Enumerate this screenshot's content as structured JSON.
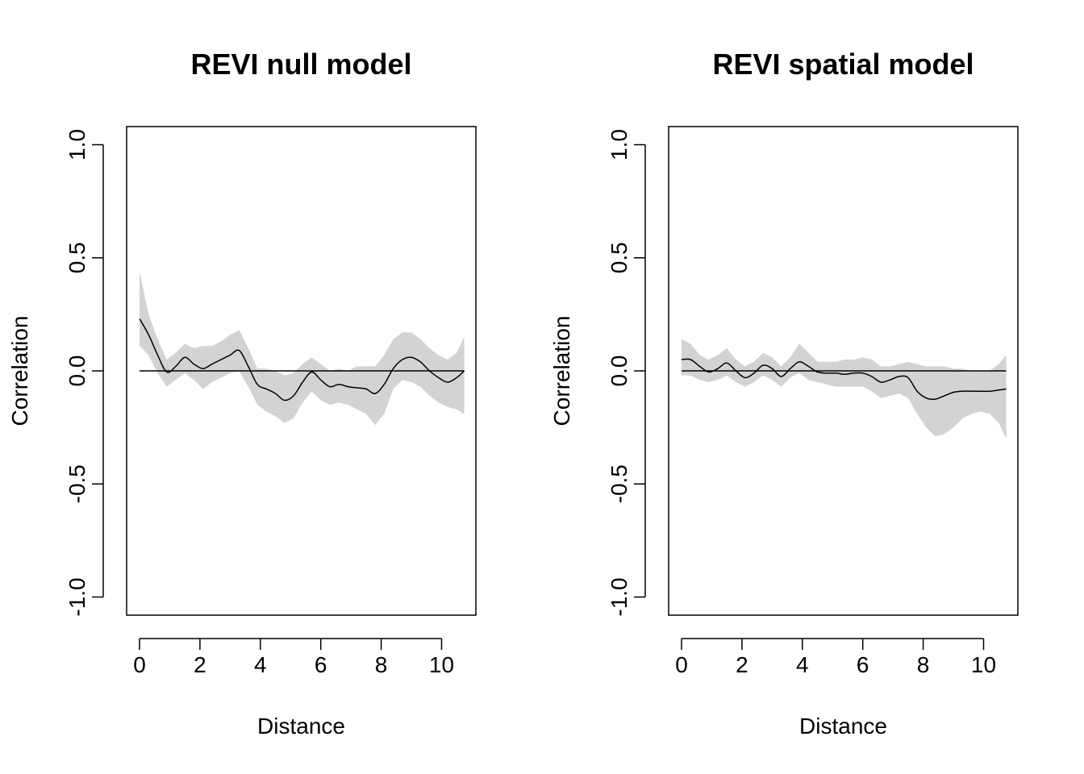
{
  "chart_data": [
    {
      "type": "line",
      "title": "REVI null model",
      "xlabel": "Distance",
      "ylabel": "Correlation",
      "xlim": [
        0,
        10.75
      ],
      "ylim": [
        -1.0,
        1.0
      ],
      "x_ticks": [
        0,
        2,
        4,
        6,
        8,
        10
      ],
      "x_tick_labels": [
        "0",
        "2",
        "4",
        "6",
        "8",
        "10"
      ],
      "y_ticks": [
        -1.0,
        -0.5,
        0.0,
        0.5,
        1.0
      ],
      "y_tick_labels": [
        "-1.0",
        "-0.5",
        "0.0",
        "0.5",
        "1.0"
      ],
      "grid": false,
      "reference_line_y": 0,
      "band_color": "#d3d3d3",
      "line_color": "#000000",
      "series": [
        {
          "x": [
            0,
            0.3,
            0.6,
            0.9,
            1.2,
            1.5,
            1.8,
            2.1,
            2.4,
            2.7,
            3.0,
            3.3,
            3.6,
            3.9,
            4.2,
            4.5,
            4.8,
            5.1,
            5.4,
            5.7,
            6.0,
            6.3,
            6.6,
            6.9,
            7.2,
            7.5,
            7.8,
            8.1,
            8.4,
            8.7,
            9.0,
            9.3,
            9.6,
            9.9,
            10.2,
            10.5,
            10.75
          ],
          "y": [
            0.23,
            0.16,
            0.07,
            -0.005,
            0.02,
            0.06,
            0.03,
            0.01,
            0.03,
            0.05,
            0.07,
            0.09,
            0.02,
            -0.06,
            -0.08,
            -0.1,
            -0.13,
            -0.11,
            -0.05,
            -0.005,
            -0.04,
            -0.07,
            -0.06,
            -0.07,
            -0.075,
            -0.08,
            -0.1,
            -0.06,
            0.01,
            0.05,
            0.06,
            0.04,
            0.0,
            -0.03,
            -0.05,
            -0.03,
            0.0
          ],
          "lower": [
            0.11,
            0.07,
            -0.01,
            -0.07,
            -0.04,
            -0.01,
            -0.04,
            -0.08,
            -0.05,
            -0.03,
            -0.01,
            0.0,
            -0.07,
            -0.15,
            -0.18,
            -0.2,
            -0.23,
            -0.21,
            -0.14,
            -0.09,
            -0.13,
            -0.15,
            -0.14,
            -0.15,
            -0.17,
            -0.19,
            -0.24,
            -0.19,
            -0.08,
            -0.04,
            -0.05,
            -0.07,
            -0.11,
            -0.14,
            -0.16,
            -0.17,
            -0.19
          ],
          "upper": [
            0.44,
            0.25,
            0.14,
            0.05,
            0.08,
            0.12,
            0.1,
            0.11,
            0.11,
            0.13,
            0.16,
            0.18,
            0.1,
            0.01,
            0.01,
            0.0,
            -0.02,
            -0.01,
            0.03,
            0.06,
            0.03,
            0.0,
            0.01,
            0.0,
            0.02,
            0.02,
            0.02,
            0.07,
            0.14,
            0.17,
            0.17,
            0.14,
            0.1,
            0.07,
            0.05,
            0.08,
            0.15
          ]
        }
      ]
    },
    {
      "type": "line",
      "title": "REVI spatial model",
      "xlabel": "Distance",
      "ylabel": "Correlation",
      "xlim": [
        0,
        10.75
      ],
      "ylim": [
        -1.0,
        1.0
      ],
      "x_ticks": [
        0,
        2,
        4,
        6,
        8,
        10
      ],
      "x_tick_labels": [
        "0",
        "2",
        "4",
        "6",
        "8",
        "10"
      ],
      "y_ticks": [
        -1.0,
        -0.5,
        0.0,
        0.5,
        1.0
      ],
      "y_tick_labels": [
        "-1.0",
        "-0.5",
        "0.0",
        "0.5",
        "1.0"
      ],
      "grid": false,
      "reference_line_y": 0,
      "band_color": "#d3d3d3",
      "line_color": "#000000",
      "series": [
        {
          "x": [
            0,
            0.3,
            0.6,
            0.9,
            1.2,
            1.5,
            1.8,
            2.1,
            2.4,
            2.7,
            3.0,
            3.3,
            3.6,
            3.9,
            4.2,
            4.5,
            4.8,
            5.1,
            5.4,
            5.7,
            6.0,
            6.3,
            6.6,
            6.9,
            7.2,
            7.5,
            7.8,
            8.1,
            8.4,
            8.7,
            9.0,
            9.3,
            9.6,
            9.9,
            10.2,
            10.5,
            10.75
          ],
          "y": [
            0.05,
            0.05,
            0.02,
            -0.005,
            0.01,
            0.035,
            0.0,
            -0.03,
            -0.01,
            0.025,
            0.01,
            -0.025,
            0.01,
            0.04,
            0.02,
            -0.005,
            -0.01,
            -0.01,
            -0.015,
            -0.01,
            -0.01,
            -0.025,
            -0.05,
            -0.04,
            -0.025,
            -0.03,
            -0.09,
            -0.12,
            -0.125,
            -0.11,
            -0.095,
            -0.09,
            -0.09,
            -0.09,
            -0.09,
            -0.085,
            -0.08
          ],
          "lower": [
            -0.02,
            -0.02,
            -0.04,
            -0.05,
            -0.04,
            -0.02,
            -0.05,
            -0.07,
            -0.05,
            -0.02,
            -0.04,
            -0.07,
            -0.03,
            -0.01,
            -0.04,
            -0.05,
            -0.06,
            -0.07,
            -0.07,
            -0.07,
            -0.07,
            -0.09,
            -0.12,
            -0.11,
            -0.1,
            -0.12,
            -0.19,
            -0.25,
            -0.29,
            -0.28,
            -0.25,
            -0.21,
            -0.19,
            -0.18,
            -0.19,
            -0.23,
            -0.3
          ],
          "upper": [
            0.14,
            0.12,
            0.07,
            0.05,
            0.07,
            0.1,
            0.05,
            0.02,
            0.04,
            0.08,
            0.06,
            0.02,
            0.06,
            0.12,
            0.08,
            0.04,
            0.04,
            0.04,
            0.05,
            0.05,
            0.06,
            0.05,
            0.02,
            0.02,
            0.03,
            0.04,
            0.03,
            0.02,
            0.02,
            0.02,
            0.01,
            0.01,
            0.0,
            0.0,
            0.0,
            0.03,
            0.07
          ]
        }
      ]
    }
  ]
}
